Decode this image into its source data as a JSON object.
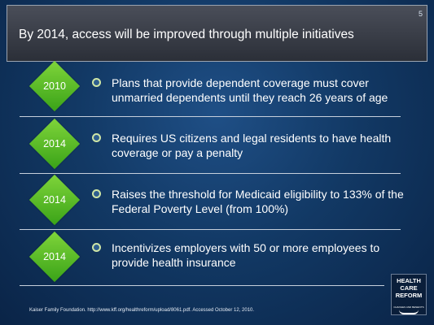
{
  "page_number": "5",
  "title": "By 2014, access will be improved through multiple initiatives",
  "items": [
    {
      "year": "2010",
      "text": "Plans that provide dependent coverage must cover unmarried dependents until they reach 26 years of age"
    },
    {
      "year": "2014",
      "text": "Requires US citizens and legal residents to have health coverage or pay a penalty"
    },
    {
      "year": "2014",
      "text": "Raises the threshold for Medicaid eligibility to 133% of the Federal Poverty Level (from 100%)"
    },
    {
      "year": "2014",
      "text": "Incentivizes employers with 50 or more employees to provide health insurance"
    }
  ],
  "footer": "Kaiser Family Foundation. http://www.kff.org/healthreform/upload/8061.pdf. Accessed October 12, 2010.",
  "logo": {
    "line1": "HEALTH",
    "line2": "CARE",
    "line3": "REFORM",
    "subtitle": "CHANGES AND BENEFITS"
  },
  "colors": {
    "background": "#123965",
    "title_bar": "#3a3e48",
    "diamond": "#5cbf28",
    "text": "#ffffff"
  }
}
